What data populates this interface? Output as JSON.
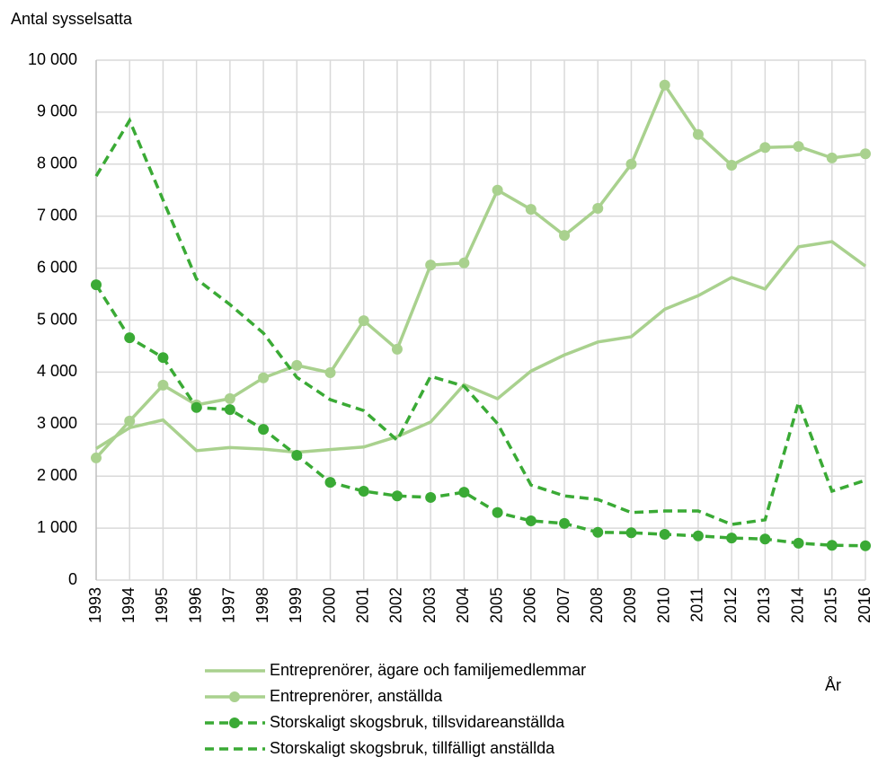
{
  "chart_data": {
    "type": "line",
    "y_label": "Antal sysselsatta",
    "x_label": "År",
    "categories": [
      "1993",
      "1994",
      "1995",
      "1996",
      "1997",
      "1998",
      "1999",
      "2000",
      "2001",
      "2002",
      "2003",
      "2004",
      "2005",
      "2006",
      "2007",
      "2008",
      "2009",
      "2010",
      "2011",
      "2012",
      "2013",
      "2014",
      "2015",
      "2016"
    ],
    "ylim": [
      0,
      10000
    ],
    "yticks": [
      0,
      {
        "value": 1000,
        "label": "1 000"
      },
      {
        "value": 2000,
        "label": "2 000"
      },
      {
        "value": 3000,
        "label": "3 000"
      },
      {
        "value": 4000,
        "label": "4 000"
      },
      {
        "value": 5000,
        "label": "5 000"
      },
      {
        "value": 6000,
        "label": "6 000"
      },
      {
        "value": 7000,
        "label": "7 000"
      },
      {
        "value": 8000,
        "label": "8 000"
      },
      {
        "value": 9000,
        "label": "9 000"
      },
      {
        "value": 10000,
        "label": "10 000"
      }
    ],
    "grid": true,
    "series": [
      {
        "name": "Entreprenörer, ägare och familjemedlemmar",
        "color": "#a9d18e",
        "dashed": false,
        "markers": false,
        "values": [
          2530,
          2930,
          3080,
          2490,
          2550,
          2520,
          2460,
          2510,
          2560,
          2760,
          3040,
          3760,
          3490,
          4020,
          4330,
          4580,
          4680,
          5210,
          5470,
          5820,
          5600,
          6410,
          6510,
          6040
        ]
      },
      {
        "name": "Entreprenörer, anställda",
        "color": "#a9d18e",
        "dashed": false,
        "markers": true,
        "values": [
          2350,
          3060,
          3750,
          3370,
          3490,
          3890,
          4130,
          3990,
          4990,
          4440,
          6060,
          6100,
          7500,
          7130,
          6630,
          7150,
          8000,
          9520,
          8570,
          7980,
          8320,
          8340,
          8120,
          8200
        ]
      },
      {
        "name": "Storskaligt skogsbruk, tillsvidareanställda",
        "color": "#3aaa35",
        "dashed": true,
        "markers": true,
        "values": [
          5680,
          4660,
          4280,
          3320,
          3280,
          2900,
          2400,
          1880,
          1710,
          1620,
          1590,
          1690,
          1300,
          1140,
          1090,
          920,
          910,
          880,
          850,
          810,
          790,
          710,
          670,
          660
        ]
      },
      {
        "name": "Storskaligt skogsbruk, tillfälligt anställda",
        "color": "#3aaa35",
        "dashed": true,
        "markers": false,
        "values": [
          7770,
          8840,
          7310,
          5790,
          5300,
          4750,
          3900,
          3470,
          3260,
          2690,
          3920,
          3730,
          3010,
          1830,
          1620,
          1550,
          1300,
          1330,
          1330,
          1070,
          1160,
          3420,
          1710,
          1920
        ]
      }
    ]
  }
}
